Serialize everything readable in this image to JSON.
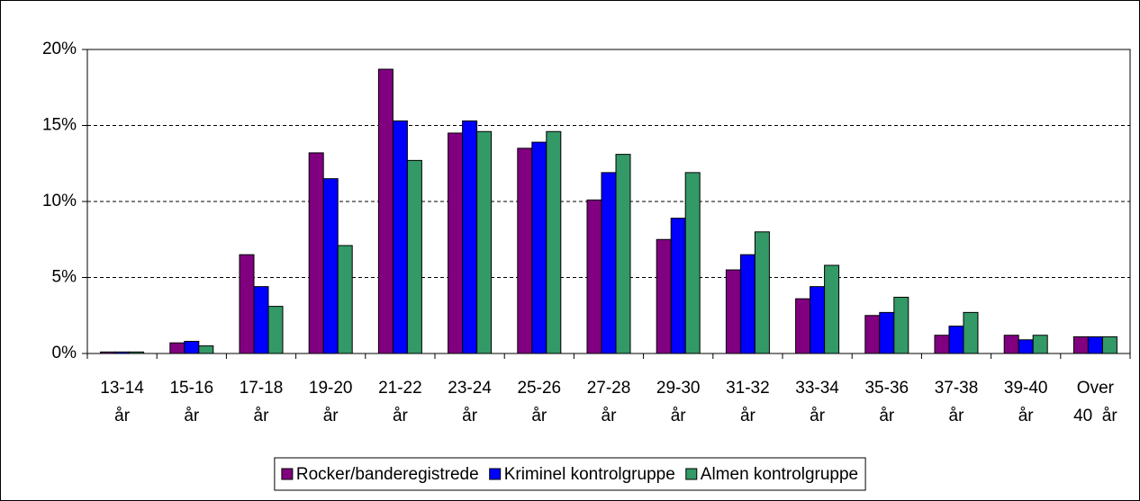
{
  "chart_data": {
    "type": "bar",
    "categories": [
      "13-14\når",
      "15-16\når",
      "17-18\når",
      "19-20\når",
      "21-22\når",
      "23-24\når",
      "25-26\når",
      "27-28\når",
      "29-30\når",
      "31-32\når",
      "33-34\når",
      "35-36\når",
      "37-38\når",
      "39-40\når",
      "Over\n40  år"
    ],
    "series": [
      {
        "name": "Rocker/banderegistrede",
        "color": "#800080",
        "values": [
          0.1,
          0.7,
          6.5,
          13.2,
          18.7,
          14.5,
          13.5,
          10.1,
          7.5,
          5.5,
          3.6,
          2.5,
          1.2,
          1.2,
          1.1
        ]
      },
      {
        "name": "Kriminel kontrolgruppe",
        "color": "#0000ff",
        "values": [
          0.1,
          0.8,
          4.4,
          11.5,
          15.3,
          15.3,
          13.9,
          11.9,
          8.9,
          6.5,
          4.4,
          2.7,
          1.8,
          0.9,
          1.1
        ]
      },
      {
        "name": "Almen kontrolgruppe",
        "color": "#339966",
        "values": [
          0.1,
          0.5,
          3.1,
          7.1,
          12.7,
          14.6,
          14.6,
          13.1,
          11.9,
          8.0,
          5.8,
          3.7,
          2.7,
          1.2,
          1.1
        ]
      }
    ],
    "ylim": [
      0,
      20
    ],
    "yticks": [
      {
        "value": 0,
        "label": "0%"
      },
      {
        "value": 5,
        "label": "5%"
      },
      {
        "value": 10,
        "label": "10%"
      },
      {
        "value": 15,
        "label": "15%"
      },
      {
        "value": 20,
        "label": "20%"
      }
    ],
    "grid": true,
    "legend": "bottom"
  }
}
